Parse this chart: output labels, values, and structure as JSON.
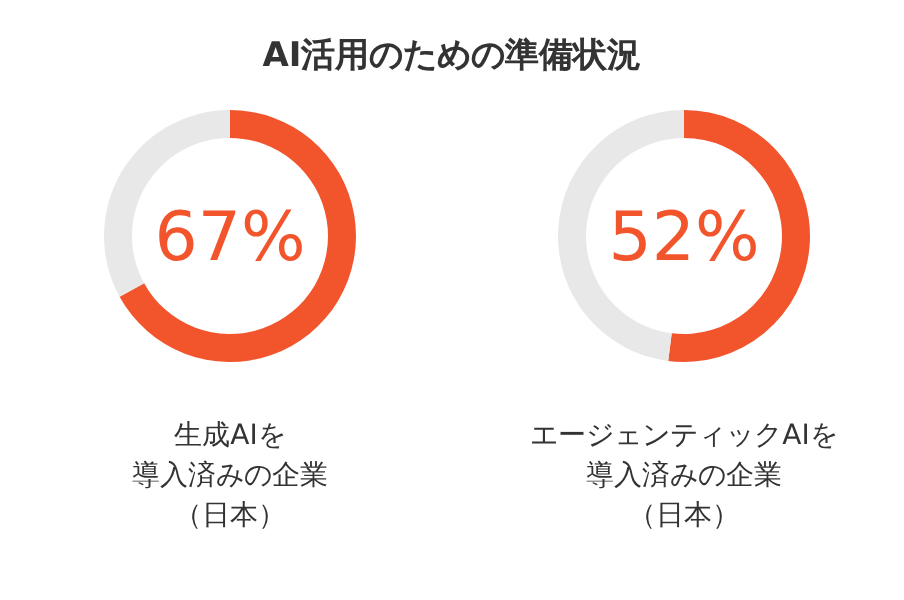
{
  "chart_data": [
    {
      "type": "donut",
      "title": "AI活用のための準備状況",
      "xlabel": "生成AIを",
      "annotations": [
        "導入済みの企業",
        "（日本）"
      ],
      "categories": [
        null,
        null
      ],
      "values": [
        67,
        33
      ],
      "colors": [
        "#f2552c",
        "#e8e8e8"
      ],
      "value_labels": [
        "67%",
        null
      ]
    },
    {
      "type": "donut",
      "xlabel": "エージェンティックAIを",
      "annotations": [
        "導入済みの企業",
        "（日本）"
      ],
      "categories": [
        null,
        null
      ],
      "values": [
        52,
        48
      ],
      "colors": [
        "#f2552c",
        "#e8e8e8"
      ],
      "value_labels": [
        "52%",
        null
      ]
    }
  ]
}
